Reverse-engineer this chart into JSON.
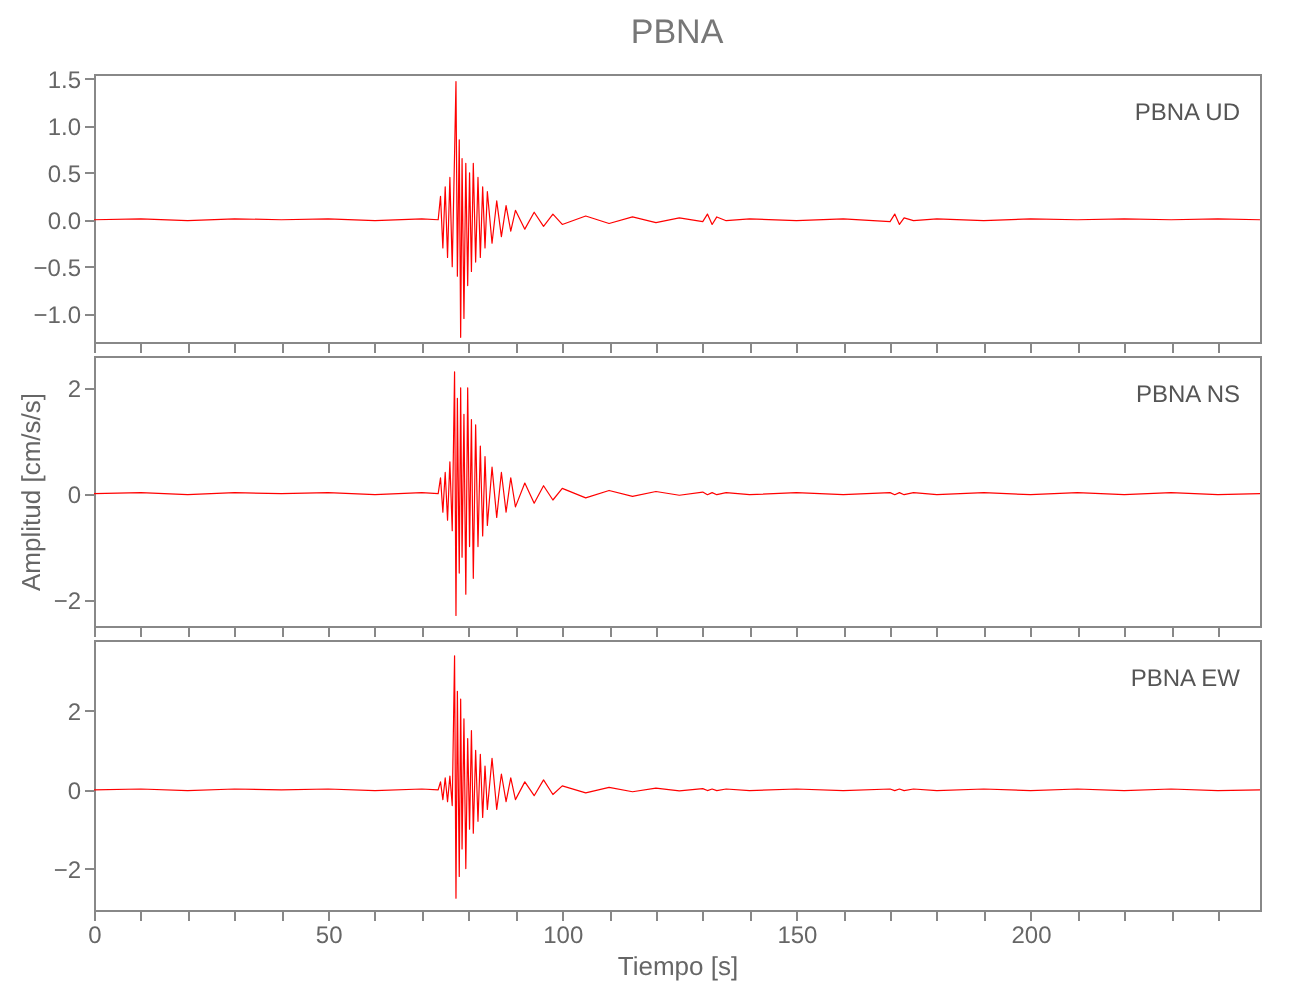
{
  "chart_data": [
    {
      "type": "line",
      "title": "PBNA",
      "annotations": [
        "PBNA   UD"
      ],
      "tick_labels": "y",
      "x": [
        0,
        10,
        20,
        30,
        40,
        50,
        60,
        70,
        73.5,
        74,
        74.5,
        75,
        75.5,
        76,
        76.5,
        77,
        77.3,
        77.6,
        78,
        78.3,
        78.6,
        79,
        79.4,
        79.8,
        80.2,
        80.6,
        81,
        81.5,
        82,
        82.5,
        83,
        83.5,
        84,
        85,
        86,
        87,
        88,
        89,
        90,
        92,
        94,
        96,
        98,
        100,
        105,
        110,
        115,
        120,
        125,
        130,
        131,
        132,
        133,
        135,
        140,
        150,
        160,
        170,
        171,
        172,
        173,
        175,
        180,
        190,
        200,
        210,
        220,
        230,
        240,
        249
      ],
      "series": [
        {
          "color": "#ff0000",
          "values": [
            0,
            0.01,
            -0.01,
            0.01,
            0,
            0.01,
            -0.01,
            0.01,
            0,
            0.25,
            -0.3,
            0.35,
            -0.4,
            0.45,
            -0.5,
            0.7,
            1.47,
            -0.6,
            0.85,
            -1.25,
            0.65,
            -1.05,
            0.6,
            -0.7,
            0.5,
            -0.55,
            0.6,
            -0.45,
            0.45,
            -0.4,
            0.35,
            -0.3,
            0.3,
            -0.25,
            0.2,
            -0.18,
            0.15,
            -0.12,
            0.1,
            -0.1,
            0.08,
            -0.07,
            0.06,
            -0.05,
            0.04,
            -0.04,
            0.03,
            -0.03,
            0.02,
            -0.02,
            0.06,
            -0.05,
            0.03,
            -0.01,
            0.01,
            -0.01,
            0.01,
            -0.02,
            0.06,
            -0.05,
            0.02,
            -0.01,
            0.01,
            -0.01,
            0.01,
            0,
            0.01,
            0,
            0.01,
            0
          ]
        }
      ],
      "xlim": [
        0,
        249
      ],
      "ylim": [
        -1.3,
        1.55
      ],
      "xticks": [
        0,
        {
          "value": 10,
          "label": null
        },
        {
          "value": 20,
          "label": null
        },
        {
          "value": 30,
          "label": null
        },
        {
          "value": 40,
          "label": null
        },
        50,
        {
          "value": 60,
          "label": null
        },
        {
          "value": 70,
          "label": null
        },
        {
          "value": 80,
          "label": null
        },
        {
          "value": 90,
          "label": null
        },
        100,
        {
          "value": 110,
          "label": null
        },
        {
          "value": 120,
          "label": null
        },
        {
          "value": 130,
          "label": null
        },
        {
          "value": 140,
          "label": null
        },
        150,
        {
          "value": 160,
          "label": null
        },
        {
          "value": 170,
          "label": null
        },
        {
          "value": 180,
          "label": null
        },
        {
          "value": 190,
          "label": null
        },
        200,
        {
          "value": 210,
          "label": null
        },
        {
          "value": 220,
          "label": null
        },
        {
          "value": 230,
          "label": null
        },
        {
          "value": 240,
          "label": null
        }
      ],
      "yticks": [
        {
          "value": -1,
          "label": "−1.0"
        },
        -0.5,
        {
          "value": 0,
          "label": "0.0"
        },
        0.5,
        {
          "value": 1,
          "label": "1.0"
        },
        1.5
      ]
    },
    {
      "type": "line",
      "ylabel": "Amplitud  [cm/s/s]",
      "annotations": [
        "PBNA   NS"
      ],
      "tick_labels": "y",
      "x": [
        0,
        10,
        20,
        30,
        40,
        50,
        60,
        70,
        73.5,
        74,
        74.5,
        75,
        75.5,
        76,
        76.5,
        77,
        77.3,
        77.6,
        78,
        78.3,
        78.6,
        79,
        79.4,
        79.8,
        80.2,
        80.6,
        81,
        81.5,
        82,
        82.5,
        83,
        83.5,
        84,
        85,
        86,
        87,
        88,
        89,
        90,
        92,
        94,
        96,
        98,
        100,
        105,
        110,
        115,
        120,
        125,
        130,
        131,
        132,
        133,
        135,
        140,
        150,
        160,
        170,
        171,
        172,
        173,
        175,
        180,
        190,
        200,
        210,
        220,
        230,
        240,
        249
      ],
      "series": [
        {
          "color": "#ff0000",
          "values": [
            0,
            0.02,
            -0.02,
            0.02,
            0,
            0.02,
            -0.02,
            0.02,
            0,
            0.3,
            -0.35,
            0.4,
            -0.5,
            0.6,
            -0.7,
            2.3,
            -2.3,
            1.8,
            -1.5,
            2.0,
            -1.2,
            1.5,
            -1.9,
            2.0,
            -1.0,
            1.4,
            -1.6,
            1.3,
            -1.0,
            0.9,
            -0.8,
            0.7,
            -0.6,
            0.5,
            -0.45,
            0.4,
            -0.35,
            0.3,
            -0.25,
            0.2,
            -0.18,
            0.15,
            -0.12,
            0.1,
            -0.08,
            0.06,
            -0.05,
            0.04,
            -0.03,
            0.03,
            -0.02,
            0.02,
            -0.02,
            0.02,
            -0.02,
            0.02,
            -0.02,
            0.02,
            -0.02,
            0.02,
            -0.02,
            0.02,
            -0.02,
            0.02,
            -0.02,
            0.02,
            -0.02,
            0.02,
            -0.02,
            0
          ]
        }
      ],
      "xlim": [
        0,
        249
      ],
      "ylim": [
        -2.5,
        2.6
      ],
      "xticks": [
        0,
        {
          "value": 10,
          "label": null
        },
        {
          "value": 20,
          "label": null
        },
        {
          "value": 30,
          "label": null
        },
        {
          "value": 40,
          "label": null
        },
        50,
        {
          "value": 60,
          "label": null
        },
        {
          "value": 70,
          "label": null
        },
        {
          "value": 80,
          "label": null
        },
        {
          "value": 90,
          "label": null
        },
        100,
        {
          "value": 110,
          "label": null
        },
        {
          "value": 120,
          "label": null
        },
        {
          "value": 130,
          "label": null
        },
        {
          "value": 140,
          "label": null
        },
        150,
        {
          "value": 160,
          "label": null
        },
        {
          "value": 170,
          "label": null
        },
        {
          "value": 180,
          "label": null
        },
        {
          "value": 190,
          "label": null
        },
        200,
        {
          "value": 210,
          "label": null
        },
        {
          "value": 220,
          "label": null
        },
        {
          "value": 230,
          "label": null
        },
        {
          "value": 240,
          "label": null
        }
      ],
      "yticks": [
        -2,
        0,
        2
      ]
    },
    {
      "type": "line",
      "xlabel": "Tiempo  [s]",
      "annotations": [
        "PBNA   EW"
      ],
      "x": [
        0,
        10,
        20,
        30,
        40,
        50,
        60,
        70,
        73.5,
        74,
        74.5,
        75,
        75.5,
        76,
        76.5,
        77,
        77.3,
        77.6,
        78,
        78.3,
        78.6,
        79,
        79.4,
        79.8,
        80.2,
        80.6,
        81,
        81.5,
        82,
        82.5,
        83,
        83.5,
        84,
        85,
        86,
        87,
        88,
        89,
        90,
        92,
        94,
        96,
        98,
        100,
        105,
        110,
        115,
        120,
        125,
        130,
        131,
        132,
        133,
        135,
        140,
        150,
        160,
        170,
        171,
        172,
        173,
        175,
        180,
        190,
        200,
        210,
        220,
        230,
        240,
        249
      ],
      "series": [
        {
          "color": "#ff0000",
          "values": [
            0,
            0.02,
            -0.02,
            0.02,
            0,
            0.02,
            -0.02,
            0.02,
            0,
            0.2,
            -0.25,
            0.3,
            -0.3,
            0.35,
            -0.4,
            3.4,
            -2.75,
            2.5,
            -2.2,
            2.3,
            -1.5,
            1.8,
            -2.0,
            1.3,
            -1.0,
            1.5,
            -1.1,
            1.0,
            -0.8,
            0.9,
            -0.7,
            0.6,
            -0.5,
            0.8,
            -0.5,
            0.4,
            -0.3,
            0.3,
            -0.25,
            0.2,
            -0.15,
            0.25,
            -0.12,
            0.1,
            -0.08,
            0.06,
            -0.05,
            0.04,
            -0.03,
            0.03,
            -0.02,
            0.02,
            -0.02,
            0.02,
            -0.02,
            0.02,
            -0.02,
            0.02,
            -0.02,
            0.02,
            -0.02,
            0.02,
            -0.02,
            0.02,
            -0.02,
            0.02,
            -0.02,
            0.02,
            -0.02,
            0
          ]
        }
      ],
      "xlim": [
        0,
        249
      ],
      "ylim": [
        -3.05,
        3.8
      ],
      "xticks": [
        0,
        {
          "value": 10,
          "label": null
        },
        {
          "value": 20,
          "label": null
        },
        {
          "value": 30,
          "label": null
        },
        {
          "value": 40,
          "label": null
        },
        50,
        {
          "value": 60,
          "label": null
        },
        {
          "value": 70,
          "label": null
        },
        {
          "value": 80,
          "label": null
        },
        {
          "value": 90,
          "label": null
        },
        100,
        {
          "value": 110,
          "label": null
        },
        {
          "value": 120,
          "label": null
        },
        {
          "value": 130,
          "label": null
        },
        {
          "value": 140,
          "label": null
        },
        150,
        {
          "value": 160,
          "label": null
        },
        {
          "value": 170,
          "label": null
        },
        {
          "value": 180,
          "label": null
        },
        {
          "value": 190,
          "label": null
        },
        200,
        {
          "value": 210,
          "label": null
        },
        {
          "value": 220,
          "label": null
        },
        {
          "value": 230,
          "label": null
        },
        {
          "value": 240,
          "label": null
        }
      ],
      "yticks": [
        -2,
        0,
        2
      ]
    }
  ]
}
